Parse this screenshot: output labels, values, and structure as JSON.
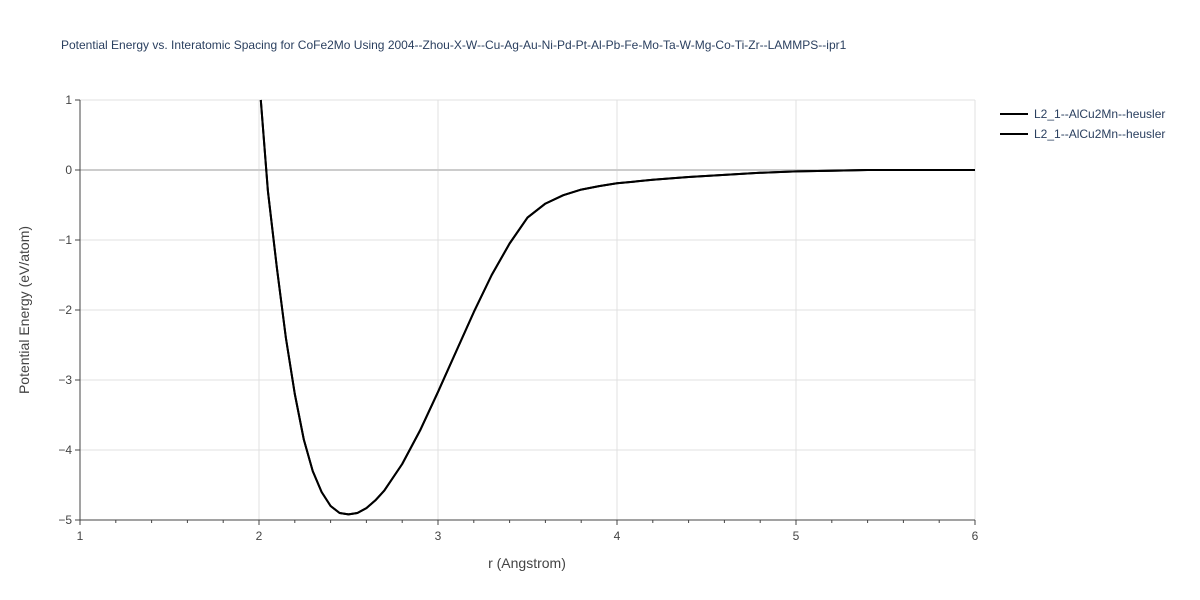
{
  "chart_data": {
    "type": "line",
    "title": "Potential Energy vs. Interatomic Spacing for CoFe2Mo Using 2004--Zhou-X-W--Cu-Ag-Au-Ni-Pd-Pt-Al-Pb-Fe-Mo-Ta-W-Mg-Co-Ti-Zr--LAMMPS--ipr1",
    "xlabel": "r (Angstrom)",
    "ylabel": "Potential Energy (eV/atom)",
    "xlim": [
      1,
      6
    ],
    "ylim": [
      -5,
      1
    ],
    "xticks": [
      1,
      2,
      3,
      4,
      5,
      6
    ],
    "yticks": [
      1,
      0,
      -1,
      -2,
      -3,
      -4,
      -5
    ],
    "grid": true,
    "legend_position": "top-right",
    "line_color": "#000000",
    "series": [
      {
        "name": "L2_1--AlCu2Mn--heusler",
        "x": [
          2.01,
          2.05,
          2.1,
          2.15,
          2.2,
          2.25,
          2.3,
          2.35,
          2.4,
          2.45,
          2.5,
          2.55,
          2.6,
          2.65,
          2.7,
          2.8,
          2.9,
          3.0,
          3.1,
          3.2,
          3.3,
          3.4,
          3.5,
          3.6,
          3.7,
          3.8,
          3.9,
          4.0,
          4.2,
          4.4,
          4.6,
          4.8,
          5.0,
          5.2,
          5.4,
          5.6,
          5.8,
          6.0
        ],
        "y": [
          1.0,
          -0.3,
          -1.4,
          -2.4,
          -3.2,
          -3.85,
          -4.3,
          -4.6,
          -4.8,
          -4.9,
          -4.92,
          -4.9,
          -4.83,
          -4.72,
          -4.58,
          -4.2,
          -3.72,
          -3.17,
          -2.6,
          -2.03,
          -1.5,
          -1.05,
          -0.68,
          -0.48,
          -0.36,
          -0.28,
          -0.23,
          -0.19,
          -0.14,
          -0.1,
          -0.07,
          -0.04,
          -0.02,
          -0.01,
          0.0,
          0.0,
          0.0,
          0.0
        ]
      },
      {
        "name": "L2_1--AlCu2Mn--heusler",
        "x": [
          2.01,
          2.05,
          2.1,
          2.15,
          2.2,
          2.25,
          2.3,
          2.35,
          2.4,
          2.45,
          2.5,
          2.55,
          2.6,
          2.65,
          2.7,
          2.8,
          2.9,
          3.0,
          3.1,
          3.2,
          3.3,
          3.4,
          3.5,
          3.6,
          3.7,
          3.8,
          3.9,
          4.0,
          4.2,
          4.4,
          4.6,
          4.8,
          5.0,
          5.2,
          5.4,
          5.6,
          5.8,
          6.0
        ],
        "y": [
          1.0,
          -0.3,
          -1.4,
          -2.4,
          -3.2,
          -3.85,
          -4.3,
          -4.6,
          -4.8,
          -4.9,
          -4.92,
          -4.9,
          -4.83,
          -4.72,
          -4.58,
          -4.2,
          -3.72,
          -3.17,
          -2.6,
          -2.03,
          -1.5,
          -1.05,
          -0.68,
          -0.48,
          -0.36,
          -0.28,
          -0.23,
          -0.19,
          -0.14,
          -0.1,
          -0.07,
          -0.04,
          -0.02,
          -0.01,
          0.0,
          0.0,
          0.0,
          0.0
        ]
      }
    ]
  }
}
